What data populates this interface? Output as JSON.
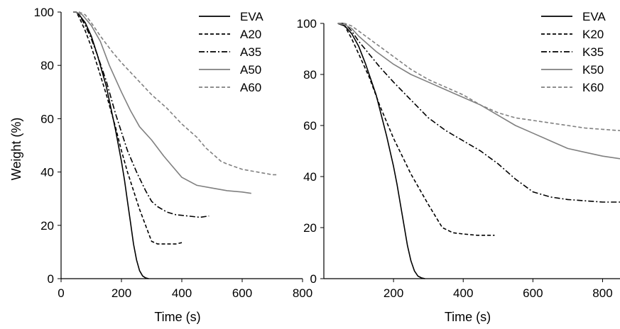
{
  "chart_data": [
    {
      "type": "line",
      "xlabel": "Time (s)",
      "ylabel": "Weight (%)",
      "xlim": [
        0,
        800
      ],
      "ylim": [
        0,
        100
      ],
      "xticks": [
        "0",
        "200",
        "400",
        "600",
        "800"
      ],
      "yticks": [
        "0",
        "20",
        "40",
        "60",
        "80",
        "100"
      ],
      "legend_position": "top-right",
      "series": [
        {
          "name": "EVA",
          "color": "#000000",
          "dash": "solid",
          "x": [
            40,
            50,
            60,
            80,
            100,
            120,
            150,
            180,
            200,
            210,
            220,
            230,
            240,
            250,
            260,
            270,
            280,
            290
          ],
          "y": [
            100,
            100,
            99,
            96,
            91,
            84,
            72,
            56,
            44,
            37,
            29,
            21,
            13,
            7,
            3,
            1,
            0.3,
            0
          ]
        },
        {
          "name": "A20",
          "color": "#000000",
          "dash": "dashed",
          "x": [
            40,
            50,
            60,
            80,
            100,
            120,
            150,
            180,
            200,
            220,
            240,
            260,
            280,
            300,
            320,
            340,
            360,
            380,
            400
          ],
          "y": [
            100,
            100,
            98,
            93,
            87,
            80,
            69,
            57,
            48,
            40,
            33,
            26,
            20,
            14,
            13,
            13,
            13,
            13,
            13.5
          ]
        },
        {
          "name": "A35",
          "color": "#000000",
          "dash": "dashdot",
          "x": [
            40,
            50,
            60,
            80,
            100,
            120,
            150,
            180,
            200,
            220,
            250,
            280,
            300,
            320,
            350,
            380,
            420,
            460,
            490
          ],
          "y": [
            100,
            100,
            99,
            95,
            90,
            84,
            74,
            62,
            55,
            48,
            40,
            33,
            29,
            27,
            25,
            24,
            23.5,
            23,
            23.5
          ]
        },
        {
          "name": "A50",
          "color": "#808080",
          "dash": "solid",
          "x": [
            40,
            50,
            70,
            100,
            130,
            160,
            200,
            230,
            260,
            300,
            340,
            370,
            400,
            450,
            500,
            550,
            600,
            630
          ],
          "y": [
            100,
            100,
            99,
            95,
            89,
            80,
            70,
            63,
            57,
            52,
            46,
            42,
            38,
            35,
            34,
            33,
            32.5,
            32
          ]
        },
        {
          "name": "A60",
          "color": "#808080",
          "dash": "dashed",
          "x": [
            40,
            50,
            60,
            80,
            100,
            130,
            170,
            200,
            250,
            300,
            350,
            400,
            450,
            480,
            510,
            530,
            550,
            600,
            650,
            700,
            720
          ],
          "y": [
            100,
            100,
            100,
            99,
            96,
            91,
            85,
            81,
            75,
            69,
            64,
            58,
            53,
            49,
            46,
            44,
            43,
            41,
            40,
            39,
            39
          ]
        }
      ]
    },
    {
      "type": "line",
      "xlabel": "Time (s)",
      "ylabel": "",
      "xlim": [
        0,
        850
      ],
      "ylim": [
        0,
        100
      ],
      "xticks": [
        "200",
        "400",
        "600",
        "800"
      ],
      "yticks": [
        "0",
        "20",
        "40",
        "60",
        "80",
        "100"
      ],
      "legend_position": "top-right",
      "series": [
        {
          "name": "EVA",
          "color": "#000000",
          "dash": "solid",
          "x": [
            40,
            60,
            80,
            100,
            120,
            150,
            180,
            200,
            210,
            220,
            230,
            240,
            250,
            260,
            270,
            280,
            290
          ],
          "y": [
            100,
            99,
            96,
            91,
            84,
            72,
            56,
            44,
            37,
            29,
            21,
            13,
            7,
            3,
            1,
            0.3,
            0
          ]
        },
        {
          "name": "K20",
          "color": "#000000",
          "dash": "dashed",
          "x": [
            40,
            60,
            80,
            100,
            130,
            160,
            200,
            250,
            300,
            340,
            370,
            400,
            440,
            490
          ],
          "y": [
            100,
            99,
            94,
            88,
            79,
            68,
            55,
            41,
            29,
            20,
            18,
            17.5,
            17,
            17
          ]
        },
        {
          "name": "K35",
          "color": "#000000",
          "dash": "dashdot",
          "x": [
            40,
            60,
            80,
            100,
            130,
            160,
            200,
            250,
            300,
            350,
            400,
            450,
            500,
            550,
            600,
            650,
            700,
            750,
            800,
            850
          ],
          "y": [
            100,
            100,
            97,
            93,
            88,
            83,
            77,
            70,
            63,
            58,
            54,
            50,
            45,
            39,
            34,
            32,
            31,
            30.5,
            30,
            30
          ]
        },
        {
          "name": "K50",
          "color": "#808080",
          "dash": "solid",
          "x": [
            40,
            60,
            80,
            100,
            150,
            200,
            250,
            300,
            350,
            400,
            450,
            500,
            550,
            600,
            650,
            700,
            750,
            800,
            850
          ],
          "y": [
            100,
            99.5,
            98,
            95,
            89,
            84,
            80,
            77,
            74,
            71,
            68,
            64,
            60,
            57,
            54,
            51,
            49.5,
            48,
            47
          ]
        },
        {
          "name": "K60",
          "color": "#808080",
          "dash": "dashed",
          "x": [
            40,
            60,
            80,
            100,
            150,
            200,
            250,
            300,
            350,
            400,
            450,
            500,
            550,
            600,
            650,
            700,
            750,
            800,
            850
          ],
          "y": [
            100,
            100,
            99,
            97,
            92,
            87,
            82,
            78,
            75,
            72,
            68,
            65,
            63,
            62,
            61,
            60,
            59,
            58.5,
            58
          ]
        }
      ]
    }
  ]
}
